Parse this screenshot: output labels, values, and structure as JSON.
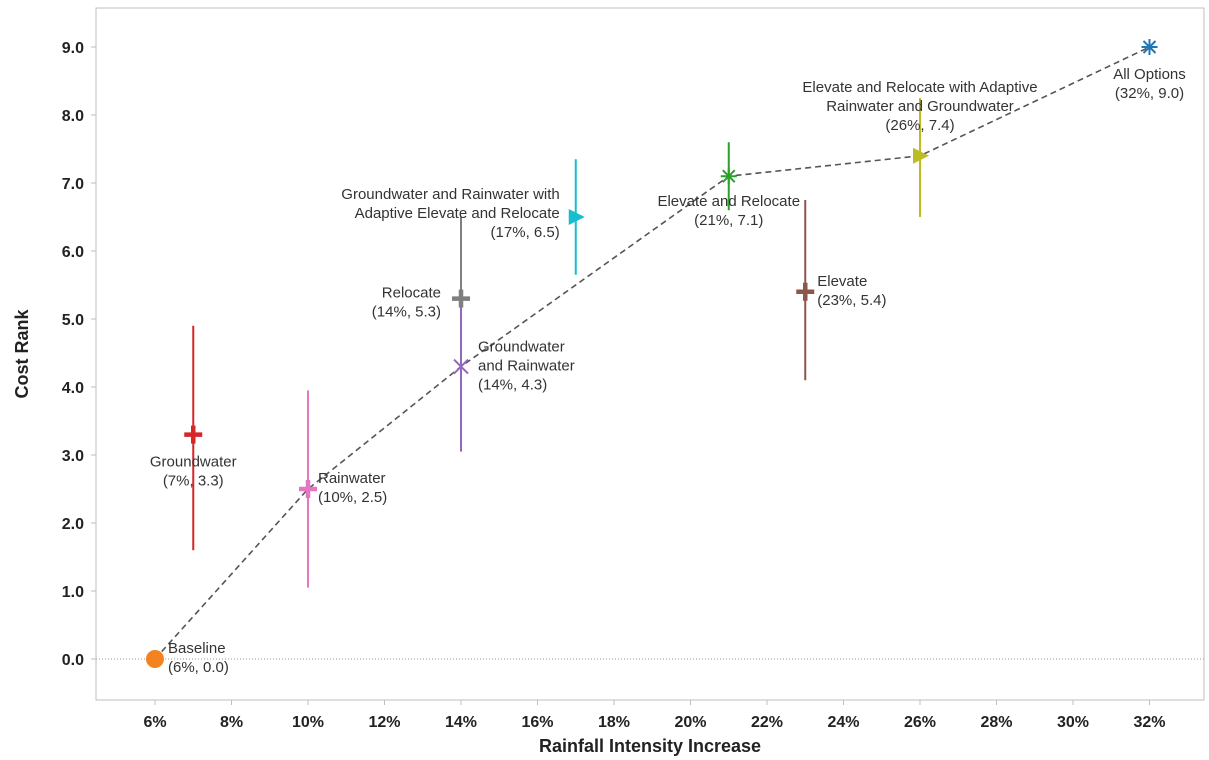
{
  "chart_data": {
    "type": "scatter",
    "title": "",
    "xlabel": "Rainfall Intensity Increase",
    "ylabel": "Cost Rank",
    "xlim": [
      4.5,
      33.5
    ],
    "ylim": [
      -0.6,
      9.6
    ],
    "x_ticks": [
      6,
      8,
      10,
      12,
      14,
      16,
      18,
      20,
      22,
      24,
      26,
      28,
      30,
      32
    ],
    "x_tick_labels": [
      "6%",
      "8%",
      "10%",
      "12%",
      "14%",
      "16%",
      "18%",
      "20%",
      "22%",
      "24%",
      "26%",
      "28%",
      "30%",
      "32%"
    ],
    "y_ticks": [
      0,
      1,
      2,
      3,
      4,
      5,
      6,
      7,
      8,
      9
    ],
    "y_tick_labels": [
      "0.0",
      "1.0",
      "2.0",
      "3.0",
      "4.0",
      "5.0",
      "6.0",
      "7.0",
      "8.0",
      "9.0"
    ],
    "grid": false,
    "zero_line": true,
    "frontier": [
      [
        6,
        0.0
      ],
      [
        10,
        2.5
      ],
      [
        14,
        4.3
      ],
      [
        21,
        7.1
      ],
      [
        26,
        7.4
      ],
      [
        32,
        9.0
      ]
    ],
    "points": [
      {
        "x": 6,
        "y": 0.0,
        "y_low": 0.0,
        "y_high": 0.0,
        "color": "#f58220",
        "marker": "circle",
        "label": [
          "Baseline",
          "(6%, 0.0)"
        ]
      },
      {
        "x": 7,
        "y": 3.3,
        "y_low": 1.6,
        "y_high": 4.9,
        "color": "#d62728",
        "marker": "plus",
        "label": [
          "Groundwater",
          "(7%, 3.3)"
        ]
      },
      {
        "x": 10,
        "y": 2.5,
        "y_low": 1.05,
        "y_high": 3.95,
        "color": "#e377c2",
        "marker": "plus",
        "label": [
          "Rainwater",
          "(10%, 2.5)"
        ]
      },
      {
        "x": 14,
        "y": 5.3,
        "y_low": 4.3,
        "y_high": 6.5,
        "color": "#7f7f7f",
        "marker": "plus",
        "label": [
          "Relocate",
          "(14%, 5.3)"
        ]
      },
      {
        "x": 14,
        "y": 4.3,
        "y_low": 3.05,
        "y_high": 5.3,
        "color": "#9467bd",
        "marker": "x",
        "label": [
          "Groundwater",
          "and Rainwater",
          "(14%, 4.3)"
        ]
      },
      {
        "x": 17,
        "y": 6.5,
        "y_low": 5.65,
        "y_high": 7.35,
        "color": "#17becf",
        "marker": "triangle",
        "label": [
          "Groundwater and Rainwater with",
          "Adaptive Elevate and Relocate",
          "(17%, 6.5)"
        ]
      },
      {
        "x": 21,
        "y": 7.1,
        "y_low": 6.6,
        "y_high": 7.6,
        "color": "#2ca02c",
        "marker": "star",
        "label": [
          "Elevate and Relocate",
          "(21%, 7.1)"
        ]
      },
      {
        "x": 23,
        "y": 5.4,
        "y_low": 4.1,
        "y_high": 6.75,
        "color": "#8c564b",
        "marker": "plus",
        "label": [
          "Elevate",
          "(23%, 5.4)"
        ]
      },
      {
        "x": 26,
        "y": 7.4,
        "y_low": 6.5,
        "y_high": 8.25,
        "color": "#bcbd22",
        "marker": "triangle",
        "label": [
          "Elevate and Relocate with Adaptive",
          "Rainwater and Groundwater",
          "(26%, 7.4)"
        ]
      },
      {
        "x": 32,
        "y": 9.0,
        "y_low": 9.0,
        "y_high": 9.0,
        "color": "#1f77b4",
        "marker": "star",
        "label": [
          "All Options",
          "(32%, 9.0)"
        ]
      }
    ]
  }
}
